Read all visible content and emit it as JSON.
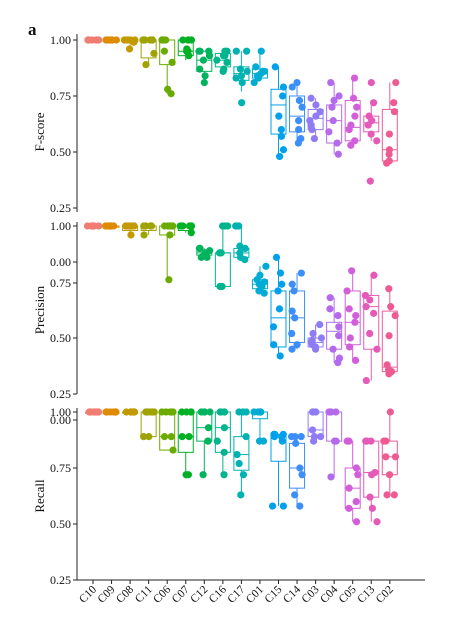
{
  "panel_label": "a",
  "chart_data": {
    "type": "box_strip",
    "categories": [
      "C10",
      "C09",
      "C08",
      "C11",
      "C06",
      "C07",
      "C12",
      "C16",
      "C17",
      "C01",
      "C15",
      "C14",
      "C03",
      "C04",
      "C05",
      "C13",
      "C02"
    ],
    "colors": {
      "C10": "#f07c72",
      "C09": "#e08a00",
      "C08": "#c29a00",
      "C11": "#9ea300",
      "C06": "#6bab00",
      "C07": "#00b126",
      "C12": "#00b35f",
      "C16": "#00b58d",
      "C17": "#00b2b2",
      "C01": "#00acd3",
      "C15": "#00a0eb",
      "C14": "#3c8ef8",
      "C03": "#8f7cf5",
      "C04": "#b36bec",
      "C05": "#d35ed9",
      "C13": "#e55ab7",
      "C02": "#ee5b92"
    },
    "panels": [
      {
        "metric": "F-score",
        "ylabel": "F-score",
        "ticks": [
          "1.00",
          "0.75",
          "0.50",
          "0.25"
        ],
        "ylim": [
          0.25,
          1.04
        ],
        "boxes": [
          [
            1.0,
            1.0,
            1.0,
            1.0,
            1.0
          ],
          [
            1.0,
            1.0,
            1.0,
            1.0,
            1.0
          ],
          [
            0.96,
            0.99,
            1.0,
            1.0,
            1.0
          ],
          [
            0.89,
            0.92,
            1.0,
            1.0,
            1.0
          ],
          [
            0.76,
            0.89,
            1.0,
            1.0,
            1.0
          ],
          [
            0.91,
            0.93,
            0.95,
            1.0,
            1.0
          ],
          [
            0.81,
            0.86,
            0.91,
            0.95,
            0.95
          ],
          [
            0.86,
            0.88,
            0.91,
            0.94,
            0.95
          ],
          [
            0.77,
            0.82,
            0.85,
            0.88,
            0.95
          ],
          [
            0.82,
            0.83,
            0.85,
            0.87,
            0.95
          ],
          [
            0.48,
            0.58,
            0.71,
            0.78,
            0.88
          ],
          [
            0.54,
            0.59,
            0.66,
            0.75,
            0.81
          ],
          [
            0.56,
            0.6,
            0.65,
            0.69,
            0.74
          ],
          [
            0.49,
            0.54,
            0.64,
            0.71,
            0.81
          ],
          [
            0.53,
            0.55,
            0.61,
            0.73,
            0.83
          ],
          [
            0.55,
            0.59,
            0.63,
            0.66,
            0.72
          ],
          [
            0.45,
            0.46,
            0.51,
            0.69,
            0.81
          ]
        ],
        "points": [
          [
            1.0,
            1.0,
            1.0,
            1.0,
            1.0,
            1.0,
            1.0,
            1.0
          ],
          [
            1.0,
            1.0,
            1.0,
            1.0,
            1.0,
            1.0,
            1.0,
            1.0
          ],
          [
            0.96,
            1.0,
            1.0,
            1.0,
            0.99,
            1.0,
            1.0,
            1.0
          ],
          [
            0.89,
            0.94,
            1.0,
            1.0,
            1.0,
            1.0,
            1.0,
            1.0
          ],
          [
            0.76,
            0.78,
            0.9,
            0.95,
            1.0,
            1.0,
            1.0,
            1.0
          ],
          [
            0.93,
            0.95,
            0.95,
            1.0,
            1.0,
            1.0,
            1.0,
            0.96
          ],
          [
            0.81,
            0.84,
            0.87,
            0.91,
            0.93,
            0.95,
            0.95,
            0.95
          ],
          [
            0.86,
            0.87,
            0.9,
            0.91,
            0.93,
            0.95,
            0.95,
            0.93
          ],
          [
            0.72,
            0.81,
            0.83,
            0.84,
            0.86,
            0.87,
            0.95,
            0.95
          ],
          [
            0.81,
            0.83,
            0.84,
            0.85,
            0.86,
            0.86,
            0.88,
            0.95
          ],
          [
            0.48,
            0.51,
            0.57,
            0.6,
            0.66,
            0.75,
            0.79,
            0.88
          ],
          [
            0.54,
            0.56,
            0.6,
            0.64,
            0.7,
            0.73,
            0.79,
            0.81
          ],
          [
            0.56,
            0.6,
            0.62,
            0.64,
            0.66,
            0.68,
            0.71,
            0.74
          ],
          [
            0.49,
            0.54,
            0.59,
            0.64,
            0.7,
            0.73,
            0.75,
            0.81
          ],
          [
            0.53,
            0.55,
            0.6,
            0.62,
            0.66,
            0.7,
            0.74,
            0.83
          ],
          [
            0.37,
            0.55,
            0.58,
            0.62,
            0.64,
            0.66,
            0.72,
            0.81
          ],
          [
            0.45,
            0.46,
            0.49,
            0.51,
            0.58,
            0.68,
            0.72,
            0.81
          ]
        ]
      },
      {
        "metric": "Precision",
        "ylabel": "Precision",
        "ticks": [
          "1.00",
          "0.00",
          "0.75",
          "0.50",
          "0.25"
        ],
        "ylim": [
          0.25,
          1.04
        ],
        "boxes": [
          [
            1.0,
            1.0,
            1.0,
            1.0,
            1.0
          ],
          [
            1.0,
            1.0,
            1.0,
            1.0,
            1.0
          ],
          [
            0.97,
            0.98,
            1.0,
            1.0,
            1.0
          ],
          [
            0.96,
            0.98,
            1.0,
            1.0,
            1.0
          ],
          [
            0.76,
            0.96,
            1.0,
            1.0,
            1.0
          ],
          [
            0.97,
            0.98,
            1.0,
            1.0,
            1.0
          ],
          [
            0.86,
            0.87,
            0.88,
            0.89,
            0.9
          ],
          [
            0.73,
            0.73,
            0.88,
            0.88,
            1.0
          ],
          [
            0.85,
            0.86,
            0.88,
            0.9,
            1.0
          ],
          [
            0.7,
            0.72,
            0.74,
            0.76,
            0.82
          ],
          [
            0.42,
            0.46,
            0.59,
            0.71,
            0.86
          ],
          [
            0.45,
            0.48,
            0.59,
            0.71,
            0.79
          ],
          [
            0.45,
            0.46,
            0.48,
            0.5,
            0.56
          ],
          [
            0.39,
            0.45,
            0.53,
            0.57,
            0.68
          ],
          [
            0.4,
            0.47,
            0.57,
            0.71,
            0.8
          ],
          [
            0.31,
            0.45,
            0.64,
            0.69,
            0.78
          ],
          [
            0.34,
            0.35,
            0.37,
            0.62,
            0.72
          ]
        ],
        "points": [
          [
            1.0,
            1.0,
            1.0,
            1.0,
            1.0,
            1.0,
            1.0,
            1.0
          ],
          [
            1.0,
            1.0,
            1.0,
            1.0,
            1.0,
            1.0,
            1.0,
            1.0
          ],
          [
            0.96,
            1.0,
            1.0,
            1.0,
            1.0,
            1.0,
            1.0,
            1.0
          ],
          [
            0.96,
            1.0,
            1.0,
            1.0,
            1.0,
            1.0,
            1.0,
            1.0
          ],
          [
            0.76,
            0.96,
            1.0,
            1.0,
            1.0,
            1.0,
            1.0,
            1.0
          ],
          [
            0.97,
            1.0,
            1.0,
            1.0,
            1.0,
            1.0,
            1.0,
            1.0
          ],
          [
            0.86,
            0.87,
            0.88,
            0.88,
            0.89,
            0.9,
            0.9,
            0.86
          ],
          [
            0.73,
            0.73,
            0.88,
            0.88,
            0.88,
            1.0,
            1.0,
            1.0
          ],
          [
            0.85,
            0.86,
            0.88,
            0.9,
            1.0,
            1.0,
            0.91,
            1.0
          ],
          [
            0.7,
            0.71,
            0.73,
            0.74,
            0.75,
            0.76,
            0.78,
            0.82
          ],
          [
            0.42,
            0.47,
            0.55,
            0.63,
            0.71,
            0.74,
            0.79,
            0.86
          ],
          [
            0.45,
            0.47,
            0.52,
            0.59,
            0.62,
            0.71,
            0.74,
            0.79
          ],
          [
            0.45,
            0.46,
            0.47,
            0.48,
            0.49,
            0.5,
            0.52,
            0.56
          ],
          [
            0.39,
            0.41,
            0.45,
            0.51,
            0.55,
            0.6,
            0.63,
            0.68
          ],
          [
            0.4,
            0.46,
            0.5,
            0.57,
            0.6,
            0.63,
            0.71,
            0.8
          ],
          [
            0.31,
            0.45,
            0.52,
            0.61,
            0.64,
            0.67,
            0.69,
            0.78
          ],
          [
            0.34,
            0.35,
            0.36,
            0.38,
            0.51,
            0.6,
            0.64,
            0.72
          ]
        ]
      },
      {
        "metric": "Recall",
        "ylabel": "Recall",
        "ticks": [
          "1.00",
          "0.00",
          "0.75",
          "0.50",
          "0.25"
        ],
        "ylim": [
          0.25,
          1.04
        ],
        "boxes": [
          [
            1.0,
            1.0,
            1.0,
            1.0,
            1.0
          ],
          [
            1.0,
            1.0,
            1.0,
            1.0,
            1.0
          ],
          [
            1.0,
            1.0,
            1.0,
            1.0,
            1.0
          ],
          [
            0.89,
            0.89,
            1.0,
            1.0,
            1.0
          ],
          [
            0.83,
            0.83,
            0.89,
            1.0,
            1.0
          ],
          [
            0.72,
            0.82,
            0.89,
            1.0,
            1.0
          ],
          [
            0.72,
            0.87,
            0.93,
            1.0,
            1.0
          ],
          [
            0.72,
            0.82,
            0.93,
            1.0,
            1.0
          ],
          [
            0.63,
            0.74,
            0.81,
            0.89,
            1.0
          ],
          [
            0.87,
            0.97,
            1.0,
            1.0,
            1.0
          ],
          [
            0.58,
            0.78,
            0.89,
            0.9,
            0.9
          ],
          [
            0.58,
            0.66,
            0.75,
            0.86,
            0.89
          ],
          [
            0.87,
            0.89,
            0.92,
            1.0,
            1.0
          ],
          [
            0.71,
            0.87,
            1.0,
            1.0,
            1.0
          ],
          [
            0.51,
            0.57,
            0.66,
            0.75,
            0.87
          ],
          [
            0.51,
            0.62,
            0.73,
            0.87,
            0.87
          ],
          [
            0.63,
            0.72,
            0.8,
            0.87,
            1.0
          ]
        ],
        "points": [
          [
            1.0,
            1.0,
            1.0,
            1.0,
            1.0,
            1.0,
            1.0,
            1.0
          ],
          [
            1.0,
            1.0,
            1.0,
            1.0,
            1.0,
            1.0,
            1.0,
            1.0
          ],
          [
            1.0,
            1.0,
            1.0,
            1.0,
            1.0,
            1.0,
            1.0,
            1.0
          ],
          [
            0.89,
            0.89,
            1.0,
            1.0,
            1.0,
            1.0,
            1.0,
            1.0
          ],
          [
            0.83,
            0.89,
            0.89,
            1.0,
            1.0,
            1.0,
            1.0,
            1.0
          ],
          [
            0.72,
            0.72,
            0.89,
            0.89,
            1.0,
            1.0,
            1.0,
            1.0
          ],
          [
            0.72,
            0.87,
            0.87,
            0.93,
            1.0,
            1.0,
            1.0,
            1.0
          ],
          [
            0.72,
            0.82,
            0.87,
            0.93,
            1.0,
            1.0,
            1.0,
            1.0
          ],
          [
            0.63,
            0.72,
            0.77,
            0.81,
            0.89,
            1.0,
            1.0,
            1.0
          ],
          [
            0.87,
            0.87,
            1.0,
            1.0,
            1.0,
            1.0,
            1.0,
            1.0
          ],
          [
            0.58,
            0.58,
            0.87,
            0.89,
            0.89,
            0.9,
            0.9,
            0.9
          ],
          [
            0.58,
            0.63,
            0.72,
            0.75,
            0.86,
            0.89,
            0.89,
            0.89
          ],
          [
            0.87,
            0.89,
            0.89,
            0.92,
            1.0,
            1.0,
            1.0,
            1.0
          ],
          [
            0.71,
            0.87,
            0.87,
            1.0,
            1.0,
            1.0,
            1.0,
            1.0
          ],
          [
            0.51,
            0.57,
            0.6,
            0.66,
            0.72,
            0.75,
            0.87,
            0.87
          ],
          [
            0.51,
            0.57,
            0.62,
            0.72,
            0.73,
            0.87,
            0.87,
            0.87
          ],
          [
            0.63,
            0.63,
            0.72,
            0.8,
            0.8,
            0.87,
            0.87,
            1.0
          ]
        ]
      }
    ]
  }
}
